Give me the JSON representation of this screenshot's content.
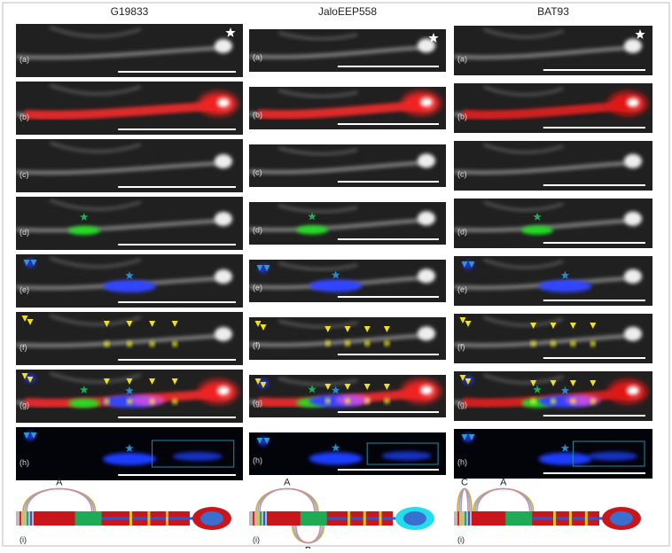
{
  "columns": [
    {
      "title": "G19833",
      "panels": [
        "(a)",
        "(b)",
        "(c)",
        "(d)",
        "(e)",
        "(f)",
        "(g)",
        "(h)"
      ],
      "schematic": {
        "label": "(i)",
        "loops": [
          "A"
        ]
      }
    },
    {
      "title": "JaloEEP558",
      "panels": [
        "(a)",
        "(b)",
        "(c)",
        "(d)",
        "(e)",
        "(f)",
        "(g)",
        "(h)"
      ],
      "schematic": {
        "label": "(i)",
        "loops": [
          "A",
          "B"
        ]
      }
    },
    {
      "title": "BAT93",
      "panels": [
        "(a)",
        "(b)",
        "(c)",
        "(d)",
        "(e)",
        "(f)",
        "(g)",
        "(h)"
      ],
      "schematic": {
        "label": "(i)",
        "loops": [
          "C",
          "A"
        ]
      }
    }
  ]
}
